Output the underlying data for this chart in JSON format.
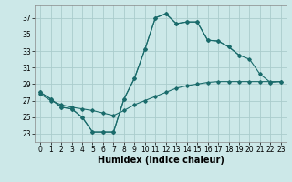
{
  "xlabel": "Humidex (Indice chaleur)",
  "background_color": "#cce8e8",
  "line_color": "#1a6b6b",
  "grid_color": "#aacccc",
  "xlim": [
    -0.5,
    23.5
  ],
  "ylim": [
    22.0,
    38.5
  ],
  "yticks": [
    23,
    25,
    27,
    29,
    31,
    33,
    35,
    37
  ],
  "xticks": [
    0,
    1,
    2,
    3,
    4,
    5,
    6,
    7,
    8,
    9,
    10,
    11,
    12,
    13,
    14,
    15,
    16,
    17,
    18,
    19,
    20,
    21,
    22,
    23
  ],
  "line_peak_x": [
    0,
    1,
    2,
    3,
    4,
    5,
    6,
    7,
    8,
    9,
    10,
    11,
    12,
    13,
    14,
    15,
    16,
    17,
    18,
    19,
    20,
    21,
    22,
    23
  ],
  "line_peak_y": [
    28.0,
    27.2,
    26.2,
    26.0,
    25.0,
    23.2,
    23.2,
    23.2,
    27.2,
    29.7,
    33.2,
    37.0,
    37.5,
    36.3,
    36.5,
    36.5,
    34.3,
    34.2,
    33.5,
    32.5,
    32.0,
    30.2,
    29.2,
    29.3
  ],
  "line_mid_x": [
    0,
    1,
    2,
    3,
    4,
    5,
    6,
    7,
    8,
    9,
    10,
    11,
    12,
    13,
    14,
    15,
    16,
    17,
    18,
    19
  ],
  "line_mid_y": [
    28.0,
    27.2,
    26.2,
    26.0,
    25.0,
    23.2,
    23.2,
    23.2,
    27.2,
    29.7,
    33.2,
    37.0,
    37.5,
    36.3,
    36.5,
    36.5,
    34.3,
    34.2,
    33.5,
    32.5
  ],
  "line_low_x": [
    0,
    1,
    2,
    3,
    4,
    5,
    6,
    7,
    8,
    9,
    10,
    11,
    12,
    13,
    14,
    15,
    16,
    17,
    18,
    19,
    20,
    21,
    22,
    23
  ],
  "line_low_y": [
    27.8,
    27.0,
    26.5,
    26.2,
    26.0,
    25.8,
    25.5,
    25.2,
    25.8,
    26.5,
    27.0,
    27.5,
    28.0,
    28.5,
    28.8,
    29.0,
    29.2,
    29.3,
    29.3,
    29.3,
    29.3,
    29.3,
    29.3,
    29.3
  ],
  "xlabel_fontsize": 7,
  "tick_fontsize": 5.5
}
